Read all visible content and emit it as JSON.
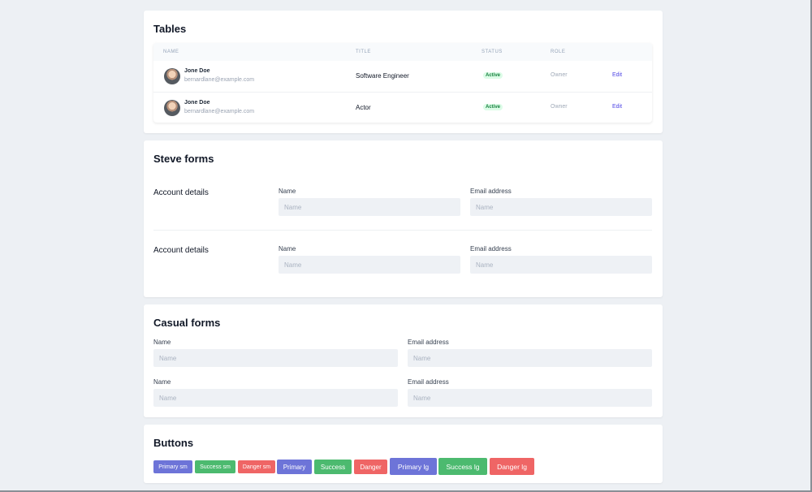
{
  "tables": {
    "title": "Tables",
    "columns": [
      "Name",
      "Title",
      "Status",
      "Role"
    ],
    "rows": [
      {
        "name": "Jone Doe",
        "email": "bernardlane@example.com",
        "title": "Software Engineer",
        "status": "Active",
        "role": "Owner",
        "action": "Edit"
      },
      {
        "name": "Jone Doe",
        "email": "bernardlane@example.com",
        "title": "Actor",
        "status": "Active",
        "role": "Owner",
        "action": "Edit"
      }
    ]
  },
  "steve_forms": {
    "title": "Steve forms",
    "sections": [
      {
        "label": "Account details",
        "name_label": "Name",
        "name_placeholder": "Name",
        "email_label": "Email address",
        "email_placeholder": "Name"
      },
      {
        "label": "Account details",
        "name_label": "Name",
        "name_placeholder": "Name",
        "email_label": "Email address",
        "email_placeholder": "Name"
      }
    ]
  },
  "casual_forms": {
    "title": "Casual forms",
    "rows": [
      {
        "name_label": "Name",
        "name_placeholder": "Name",
        "email_label": "Email address",
        "email_placeholder": "Name"
      },
      {
        "name_label": "Name",
        "name_placeholder": "Name",
        "email_label": "Email address",
        "email_placeholder": "Name"
      }
    ]
  },
  "buttons": {
    "title": "Buttons",
    "items": [
      "Primary sm",
      "Success sm",
      "Danger sm",
      "Primary",
      "Success",
      "Danger",
      "Primary lg",
      "Success lg",
      "Danger lg"
    ]
  },
  "colors": {
    "primary": "#6d74d8",
    "success": "#4cba6f",
    "danger": "#ef6565",
    "link": "#4f46e5",
    "active_badge_bg": "#dcfce7",
    "active_badge_text": "#15803d"
  }
}
